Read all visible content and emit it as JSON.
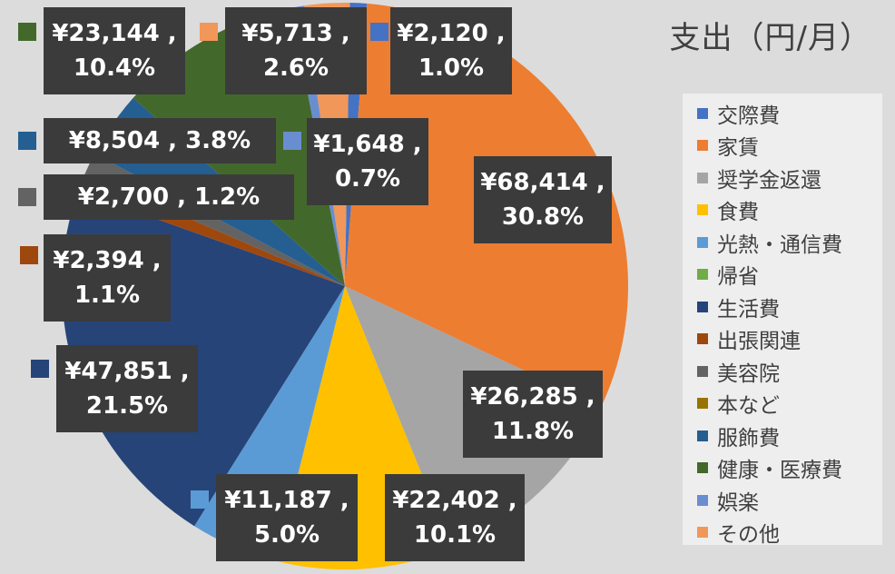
{
  "title": "支出（円/月）",
  "chart_data": {
    "type": "pie",
    "title": "支出（円/月）",
    "start_angle_deg": 1,
    "slices": [
      {
        "label": "交際費",
        "value": 2120,
        "percent": "1.0%",
        "value_text": "¥2,120",
        "color": "#4472c4"
      },
      {
        "label": "家賃",
        "value": 68414,
        "percent": "30.8%",
        "value_text": "¥68,414",
        "color": "#ed7d31"
      },
      {
        "label": "奨学金返還",
        "value": 26285,
        "percent": "11.8%",
        "value_text": "¥26,285",
        "color": "#a5a5a5"
      },
      {
        "label": "食費",
        "value": 22402,
        "percent": "10.1%",
        "value_text": "¥22,402",
        "color": "#ffc000"
      },
      {
        "label": "光熱・通信費",
        "value": 11187,
        "percent": "5.0%",
        "value_text": "¥11,187",
        "color": "#5b9bd5"
      },
      {
        "label": "帰省",
        "value": 0,
        "percent": "",
        "value_text": "",
        "color": "#70ad47"
      },
      {
        "label": "生活費",
        "value": 47851,
        "percent": "21.5%",
        "value_text": "¥47,851",
        "color": "#264478"
      },
      {
        "label": "出張関連",
        "value": 2394,
        "percent": "1.1%",
        "value_text": "¥2,394",
        "color": "#9e480e"
      },
      {
        "label": "美容院",
        "value": 2700,
        "percent": "1.2%",
        "value_text": "¥2,700",
        "color": "#636363"
      },
      {
        "label": "本など",
        "value": 0,
        "percent": "",
        "value_text": "",
        "color": "#997300"
      },
      {
        "label": "服飾費",
        "value": 8504,
        "percent": "3.8%",
        "value_text": "¥8,504",
        "color": "#255e91"
      },
      {
        "label": "健康・医療費",
        "value": 23144,
        "percent": "10.4%",
        "value_text": "¥23,144",
        "color": "#43682b"
      },
      {
        "label": "娯楽",
        "value": 1648,
        "percent": "0.7%",
        "value_text": "¥1,648",
        "color": "#698ed0"
      },
      {
        "label": "その他",
        "value": 5713,
        "percent": "2.6%",
        "value_text": "¥5,713",
        "color": "#f1975a"
      }
    ],
    "legend_position": "right"
  }
}
